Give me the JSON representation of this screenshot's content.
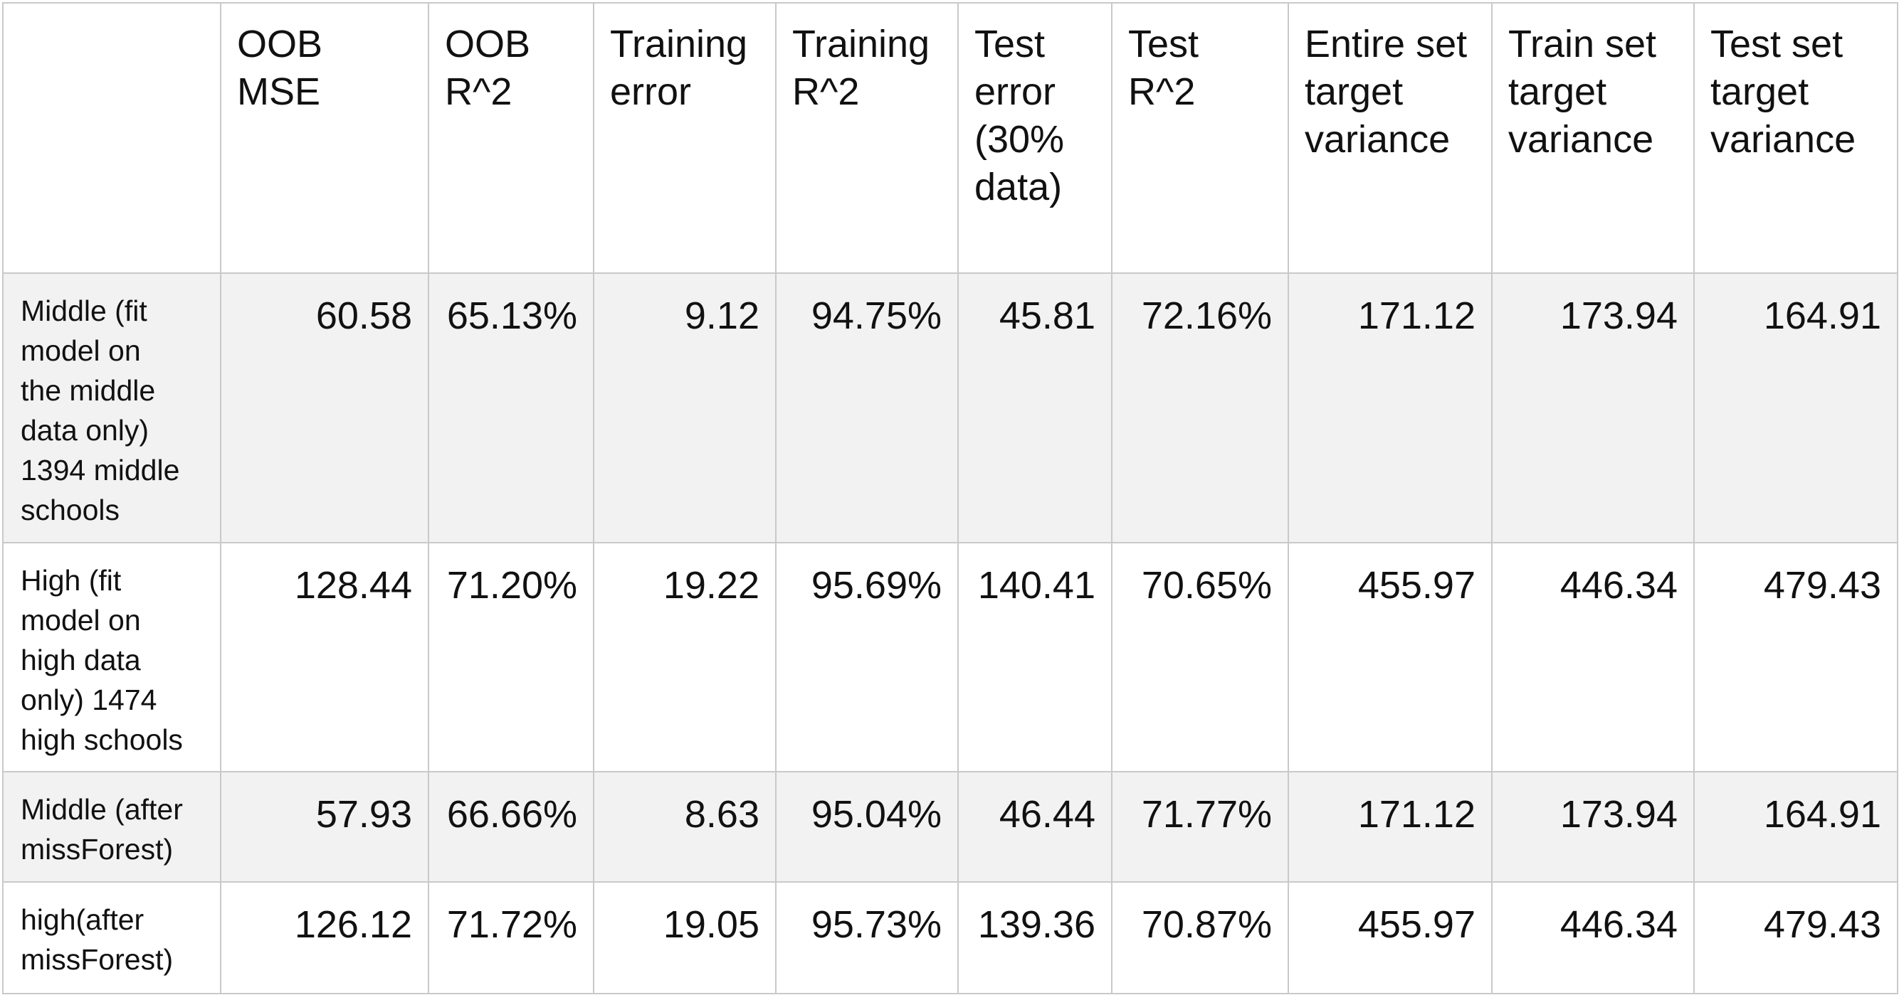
{
  "table": {
    "corner": "",
    "columns": [
      "OOB\nMSE",
      "OOB\nR^2",
      "Training\nerror",
      "Training\nR^2",
      "Test\nerror\n(30%\ndata)",
      "Test\nR^2",
      "Entire set\ntarget\nvariance",
      "Train set\ntarget\nvariance",
      "Test set\ntarget\nvariance"
    ],
    "rows": [
      {
        "label": "Middle (fit\nmodel on\nthe middle\ndata only)\n1394 middle\nschools",
        "values": [
          "60.58",
          "65.13%",
          "9.12",
          "94.75%",
          "45.81",
          "72.16%",
          "171.12",
          "173.94",
          "164.91"
        ]
      },
      {
        "label": "High (fit\nmodel on\nhigh data\nonly) 1474\nhigh schools",
        "values": [
          "128.44",
          "71.20%",
          "19.22",
          "95.69%",
          "140.41",
          "70.65%",
          "455.97",
          "446.34",
          "479.43"
        ]
      },
      {
        "label": "Middle (after\nmissForest)",
        "values": [
          "57.93",
          "66.66%",
          "8.63",
          "95.04%",
          "46.44",
          "71.77%",
          "171.12",
          "173.94",
          "164.91"
        ]
      },
      {
        "label": "high(after\nmissForest)",
        "values": [
          "126.12",
          "71.72%",
          "19.05",
          "95.73%",
          "139.36",
          "70.87%",
          "455.97",
          "446.34",
          "479.43"
        ]
      }
    ]
  },
  "colors": {
    "shaded_row": "#f2f2f2",
    "plain_row": "#ffffff",
    "grid_line": "#c9c9c9",
    "text": "#111111"
  }
}
